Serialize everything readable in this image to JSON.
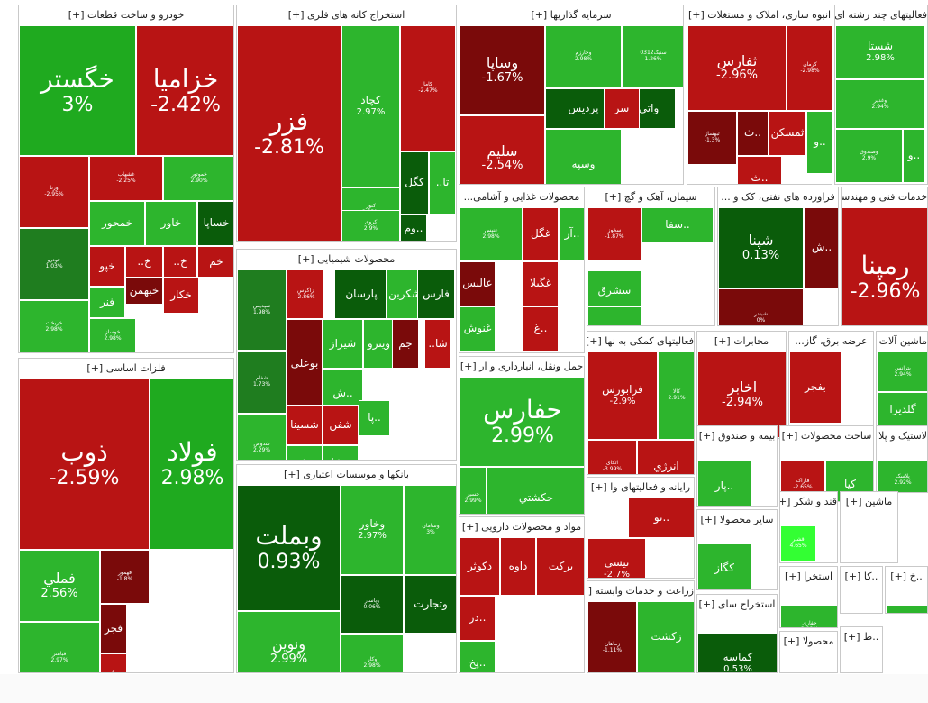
{
  "colors": {
    "up_bright": "#1faa1f",
    "up": "#2db52d",
    "up_dark": "#0a5c0a",
    "up_mid": "#1f7d1f",
    "down": "#b81414",
    "down_dark": "#7a0a0a",
    "down_light": "#d21e1e",
    "neon": "#33ff33"
  },
  "sectors": [
    {
      "title": "خودرو و ساخت قطعات [+]",
      "tiles": [
        {
          "symbol": "خگستر",
          "change": "3%",
          "c": "up_bright",
          "big": 1
        },
        {
          "symbol": "خزامیا",
          "change": "-2.42%",
          "c": "down",
          "big": 1
        },
        {
          "symbol": "ورنا",
          "change": "-2.95%",
          "c": "down",
          "small": 1
        },
        {
          "symbol": "غشهاب",
          "change": "-2.25%",
          "c": "down",
          "small": 1
        },
        {
          "symbol": "خموتور",
          "change": "2.90%",
          "c": "up",
          "small": 1
        },
        {
          "symbol": "خودرو",
          "change": "1.03%",
          "c": "up_mid",
          "small": 1
        },
        {
          "symbol": "خریخت",
          "change": "2.98%",
          "c": "up",
          "small": 1
        },
        {
          "symbol": "خمحور",
          "change": "",
          "c": "up"
        },
        {
          "symbol": "خاور",
          "change": "",
          "c": "up"
        },
        {
          "symbol": "خساپا",
          "change": "",
          "c": "up_dark"
        },
        {
          "symbol": "خپو",
          "change": "",
          "c": "down"
        },
        {
          "symbol": "خ..",
          "change": "",
          "c": "down"
        },
        {
          "symbol": "خ..",
          "change": "",
          "c": "down"
        },
        {
          "symbol": "خم",
          "change": "",
          "c": "down"
        },
        {
          "symbol": "خبهمن",
          "change": "",
          "c": "down_dark"
        },
        {
          "symbol": "فنر",
          "change": "",
          "c": "up"
        },
        {
          "symbol": "خکار",
          "change": "",
          "c": "down"
        },
        {
          "symbol": "خوساز",
          "change": "2.98%",
          "c": "up",
          "small": 1
        }
      ]
    },
    {
      "title": "استخراج کانه های فلزی [+]",
      "tiles": [
        {
          "symbol": "فزر",
          "change": "-2.81%",
          "c": "down",
          "big": 1
        },
        {
          "symbol": "کچاد",
          "change": "2.97%",
          "c": "up"
        },
        {
          "symbol": "کاما",
          "change": "-2.47%",
          "c": "down",
          "small": 1
        },
        {
          "symbol": "کگل",
          "change": "",
          "c": "up_dark"
        },
        {
          "symbol": "تا..",
          "change": "",
          "c": "up"
        },
        {
          "symbol": "کنور",
          "change": "2.83%",
          "c": "up",
          "small": 1
        },
        {
          "symbol": "کروی",
          "change": "2.9%",
          "c": "up",
          "small": 1
        },
        {
          "symbol": "..وم",
          "change": "",
          "c": "up_dark"
        }
      ]
    },
    {
      "title": "سرمایه گذاریها [+]",
      "tiles": [
        {
          "symbol": "وساپا",
          "change": "-1.67%",
          "c": "down_dark"
        },
        {
          "symbol": "وخارزم",
          "change": "2.98%",
          "c": "up",
          "small": 1
        },
        {
          "symbol": "سنیک0312",
          "change": "1.26%",
          "c": "up",
          "small": 1
        },
        {
          "symbol": "پردیس",
          "change": "",
          "c": "up_dark"
        },
        {
          "symbol": "واتي",
          "change": "",
          "c": "up_dark"
        },
        {
          "symbol": "سر",
          "change": "",
          "c": "down"
        },
        {
          "symbol": "سلیم",
          "change": "-2.54%",
          "c": "down"
        },
        {
          "symbol": "وسپه",
          "change": "",
          "c": "up"
        }
      ]
    },
    {
      "title": "انبوه سازی، املاک و مستغلات [+]",
      "tiles": [
        {
          "symbol": "ثفارس",
          "change": "-2.96%",
          "c": "down"
        },
        {
          "symbol": "کرمان",
          "change": "-2.98%",
          "c": "down",
          "small": 1
        },
        {
          "symbol": "ثبهساز",
          "change": "-1.3%",
          "c": "down_dark",
          "small": 1
        },
        {
          "symbol": "..ث",
          "change": "",
          "c": "down_dark"
        },
        {
          "symbol": "ثمسکن",
          "change": "",
          "c": "down"
        },
        {
          "symbol": "..ث",
          "change": "",
          "c": "down"
        },
        {
          "symbol": "..و",
          "change": "",
          "c": "up"
        }
      ]
    },
    {
      "title": "فعالیتهای چند رشته ای [+]",
      "tiles": [
        {
          "symbol": "شستا",
          "change": "2.98%",
          "c": "up"
        },
        {
          "symbol": "وغدیر",
          "change": "2.94%",
          "c": "up",
          "small": 1
        },
        {
          "symbol": "وصندوق",
          "change": "2.9%",
          "c": "up",
          "small": 1
        },
        {
          "symbol": "..و",
          "change": "",
          "c": "up"
        }
      ]
    },
    {
      "title": "محصولات شیمیایی [+]",
      "tiles": [
        {
          "symbol": "شپدیس",
          "change": "1.98%",
          "c": "up_mid",
          "small": 1
        },
        {
          "symbol": "زاگرس",
          "change": "-2.86%",
          "c": "down",
          "small": 1
        },
        {
          "symbol": "پارسان",
          "change": "",
          "c": "up_dark"
        },
        {
          "symbol": "شکربن",
          "change": "",
          "c": "up"
        },
        {
          "symbol": "فارس",
          "change": "",
          "c": "up_dark"
        },
        {
          "symbol": "شفام",
          "change": "1.73%",
          "c": "up_mid",
          "small": 1
        },
        {
          "symbol": "بوعلی",
          "change": "",
          "c": "down_dark"
        },
        {
          "symbol": "شیراز",
          "change": "",
          "c": "up"
        },
        {
          "symbol": "ویترو",
          "change": "",
          "c": "up"
        },
        {
          "symbol": "جم",
          "change": "",
          "c": "down_dark"
        },
        {
          "symbol": "شا..",
          "change": "",
          "c": "down"
        },
        {
          "symbol": "..ش",
          "change": "",
          "c": "up"
        },
        {
          "symbol": "شسینا",
          "change": "",
          "c": "down"
        },
        {
          "symbol": "شفن",
          "change": "",
          "c": "down"
        },
        {
          "symbol": "شدوص",
          "change": "2.29%",
          "c": "up",
          "small": 1
        },
        {
          "symbol": "..شد",
          "change": "",
          "c": "up"
        },
        {
          "symbol": "..پا",
          "change": "",
          "c": "up"
        },
        {
          "symbol": "..شا",
          "change": "",
          "c": "up"
        }
      ]
    },
    {
      "title": "فلزات اساسی [+]",
      "tiles": [
        {
          "symbol": "ذوب",
          "change": "-2.59%",
          "c": "down",
          "big": 1
        },
        {
          "symbol": "فولاد",
          "change": "2.98%",
          "c": "up_bright",
          "big": 1
        },
        {
          "symbol": "فملي",
          "change": "2.56%",
          "c": "up"
        },
        {
          "symbol": "فهمور",
          "change": "-1.8%",
          "c": "down_dark",
          "small": 1
        },
        {
          "symbol": "فباهنر",
          "change": "2.97%",
          "c": "up",
          "small": 1
        },
        {
          "symbol": "فجر",
          "change": "",
          "c": "down_dark"
        },
        {
          "symbol": "..فر",
          "change": "",
          "c": "down"
        }
      ]
    },
    {
      "title": "بانکها و موسسات اعتباری [+]",
      "tiles": [
        {
          "symbol": "وبملت",
          "change": "0.93%",
          "c": "up_dark",
          "big": 1
        },
        {
          "symbol": "وخاور",
          "change": "2.97%",
          "c": "up"
        },
        {
          "symbol": "وسامان",
          "change": "3%",
          "c": "up",
          "small": 1
        },
        {
          "symbol": "وپاسار",
          "change": "0.06%",
          "c": "up_dark",
          "small": 1
        },
        {
          "symbol": "وتجارت",
          "change": "",
          "c": "up_dark"
        },
        {
          "symbol": "ونوین",
          "change": "2.99%",
          "c": "up"
        },
        {
          "symbol": "وکار",
          "change": "2.98%",
          "c": "up",
          "small": 1
        }
      ]
    },
    {
      "title": "محصولات غذایی و آشامی...",
      "tiles": [
        {
          "symbol": "غنیس",
          "change": "2.98%",
          "c": "up",
          "small": 1
        },
        {
          "symbol": "غگل",
          "change": "",
          "c": "down"
        },
        {
          "symbol": "..آر",
          "change": "",
          "c": "up"
        },
        {
          "symbol": "عالیس",
          "change": "",
          "c": "down_dark"
        },
        {
          "symbol": "غگیلا",
          "change": "",
          "c": "down"
        },
        {
          "symbol": "غنوش",
          "change": "",
          "c": "up"
        },
        {
          "symbol": "..غ",
          "change": "",
          "c": "down"
        }
      ]
    },
    {
      "title": "سیمان، آهک و گچ [+]",
      "tiles": [
        {
          "symbol": "سخوز",
          "change": "-1.87%",
          "c": "down",
          "small": 1
        },
        {
          "symbol": "..سفا",
          "change": "",
          "c": "up"
        },
        {
          "symbol": "سشرق",
          "change": "",
          "c": "up"
        },
        {
          "symbol": "..سصو",
          "change": "",
          "c": "up"
        }
      ]
    },
    {
      "title": "فراورده های نفتی، کک و ...",
      "tiles": [
        {
          "symbol": "شپنا",
          "change": "0.13%",
          "c": "up_dark"
        },
        {
          "symbol": "..ش",
          "change": "",
          "c": "down_dark"
        },
        {
          "symbol": "شبندر",
          "change": "0%",
          "c": "down_dark",
          "small": 1
        }
      ]
    },
    {
      "title": "خدمات فنی و مهندسی...",
      "tiles": [
        {
          "symbol": "رمپنا",
          "change": "-2.96%",
          "c": "down",
          "big": 1
        }
      ]
    },
    {
      "title": "حمل ونقل، انبارداری و ار [+]",
      "tiles": [
        {
          "symbol": "حفارس",
          "change": "2.99%",
          "c": "up",
          "big": 1
        },
        {
          "symbol": "حسیر",
          "change": "2.99%",
          "c": "up",
          "small": 1
        },
        {
          "symbol": "حکشتي",
          "change": "",
          "c": "up"
        }
      ]
    },
    {
      "title": "فعالیتهای کمکی به نها [+]",
      "tiles": [
        {
          "symbol": "فرابورس",
          "change": "-2.9%",
          "c": "down"
        },
        {
          "symbol": "کالا",
          "change": "2.91%",
          "c": "up",
          "small": 1
        },
        {
          "symbol": "اتکای",
          "change": "-3.99%",
          "c": "down",
          "small": 1
        },
        {
          "symbol": "انرژي",
          "change": "",
          "c": "down"
        }
      ]
    },
    {
      "title": "مخابرات [+]",
      "tiles": [
        {
          "symbol": "اخابر",
          "change": "-2.94%",
          "c": "down"
        }
      ]
    },
    {
      "title": "عرضه برق، گاز...",
      "tiles": [
        {
          "symbol": "بفجر",
          "change": "",
          "c": "down"
        }
      ]
    },
    {
      "title": "ماشین آلات و...",
      "tiles": [
        {
          "symbol": "بترانس",
          "change": "2.94%",
          "c": "up",
          "small": 1
        },
        {
          "symbol": "گلدیرا",
          "change": "",
          "c": "up"
        }
      ]
    },
    {
      "title": "مواد و محصولات دارویی [+]",
      "tiles": [
        {
          "symbol": "برکت",
          "change": "",
          "c": "down"
        },
        {
          "symbol": "داوه",
          "change": "",
          "c": "down"
        },
        {
          "symbol": "دکوثر",
          "change": "",
          "c": "down"
        },
        {
          "symbol": "..در",
          "change": "",
          "c": "down"
        },
        {
          "symbol": "..پخ",
          "change": "",
          "c": "up"
        },
        {
          "symbol": "..دیا",
          "change": "",
          "c": "down"
        }
      ]
    },
    {
      "title": "رایانه و فعالیتهای وا [+]",
      "tiles": [
        {
          "symbol": "..تو",
          "change": "",
          "c": "down"
        },
        {
          "symbol": "تیسی",
          "change": "-2.7%",
          "c": "down"
        }
      ]
    },
    {
      "title": "زراعت و خدمات وابسته [+]",
      "tiles": [
        {
          "symbol": "زماهان",
          "change": "-1.11%",
          "c": "down_dark",
          "small": 1
        },
        {
          "symbol": "زکشت",
          "change": "",
          "c": "up"
        }
      ]
    },
    {
      "title": "بیمه و صندوق [+]",
      "tiles": [
        {
          "symbol": "..پار",
          "change": "",
          "c": "up"
        }
      ]
    },
    {
      "title": "سایر محصولا [+]",
      "tiles": [
        {
          "symbol": "کگاز",
          "change": "",
          "c": "up"
        }
      ]
    },
    {
      "title": "استخراج سای [+]",
      "tiles": [
        {
          "symbol": "کماسه",
          "change": "0.53%",
          "c": "up_dark"
        }
      ]
    },
    {
      "title": "ساخت محصولات [+]",
      "tiles": [
        {
          "symbol": "فاراک",
          "change": "-2.65%",
          "c": "down",
          "small": 1
        },
        {
          "symbol": "کیا",
          "change": "",
          "c": "up"
        }
      ]
    },
    {
      "title": "لاستیک و پلا [+]",
      "tiles": [
        {
          "symbol": "پلاسک",
          "change": "2.92%",
          "c": "up",
          "small": 1
        }
      ]
    },
    {
      "title": "قند و شکر [+]",
      "tiles": [
        {
          "symbol": "قشیر",
          "change": "4.65%",
          "c": "neon",
          "small": 1
        }
      ]
    },
    {
      "title": "ماشین [+]",
      "tiles": []
    },
    {
      "title": "استخرا [+]",
      "tiles": [
        {
          "symbol": "حفاری",
          "change": "2.98%",
          "c": "up",
          "small": 1
        }
      ]
    },
    {
      "title": "..کا [+]",
      "tiles": []
    },
    {
      "title": "..خ [+]",
      "tiles": [
        {
          "symbol": "افق",
          "change": "",
          "c": "up"
        }
      ]
    },
    {
      "title": "محصولا [+]",
      "tiles": []
    },
    {
      "title": "..ط [+]",
      "tiles": []
    }
  ]
}
